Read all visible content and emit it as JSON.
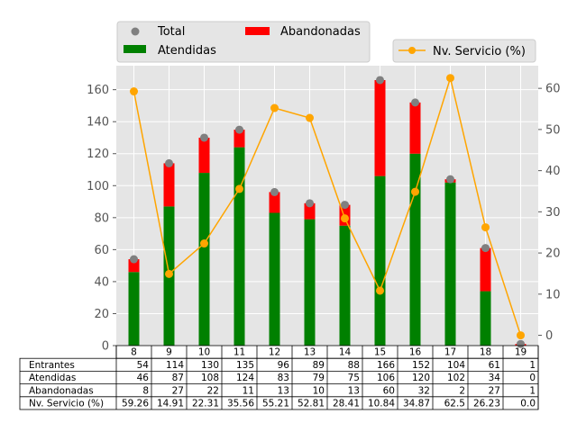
{
  "chart_data": {
    "type": "bar",
    "categories": [
      "8",
      "9",
      "10",
      "11",
      "12",
      "13",
      "14",
      "15",
      "16",
      "17",
      "18",
      "19"
    ],
    "series": [
      {
        "name": "Total",
        "kind": "scatter",
        "color": "#808080",
        "values": [
          54,
          114,
          130,
          135,
          96,
          89,
          88,
          166,
          152,
          104,
          61,
          1
        ]
      },
      {
        "name": "Atendidas",
        "kind": "stacked-bar",
        "color": "#008000",
        "values": [
          46,
          87,
          108,
          124,
          83,
          79,
          75,
          106,
          120,
          102,
          34,
          0
        ]
      },
      {
        "name": "Abandonadas",
        "kind": "stacked-bar",
        "color": "#ff0000",
        "values": [
          8,
          27,
          22,
          11,
          13,
          10,
          13,
          60,
          32,
          2,
          27,
          1
        ]
      },
      {
        "name": "Nv. Servicio (%)",
        "kind": "line",
        "axis": "right",
        "color": "#ffa500",
        "values": [
          59.26,
          14.91,
          22.31,
          35.56,
          55.21,
          52.81,
          28.41,
          10.84,
          34.87,
          62.5,
          26.23,
          0.0
        ]
      }
    ],
    "y_left": {
      "ticks": [
        0,
        20,
        40,
        60,
        80,
        100,
        120,
        140,
        160
      ],
      "ylim": [
        0,
        175
      ]
    },
    "y_right": {
      "ticks": [
        0,
        10,
        20,
        30,
        40,
        50,
        60
      ],
      "ylim": [
        -2.5,
        65.5
      ]
    },
    "grid": true,
    "legend_left": "top-left",
    "legend_right": "top-right",
    "table": {
      "rows": [
        {
          "label": "Entrantes",
          "values": [
            "54",
            "114",
            "130",
            "135",
            "96",
            "89",
            "88",
            "166",
            "152",
            "104",
            "61",
            "1"
          ]
        },
        {
          "label": "Atendidas",
          "values": [
            "46",
            "87",
            "108",
            "124",
            "83",
            "79",
            "75",
            "106",
            "120",
            "102",
            "34",
            "0"
          ]
        },
        {
          "label": "Abandonadas",
          "values": [
            "8",
            "27",
            "22",
            "11",
            "13",
            "10",
            "13",
            "60",
            "32",
            "2",
            "27",
            "1"
          ]
        },
        {
          "label": "Nv. Servicio (%)",
          "values": [
            "59.26",
            "14.91",
            "22.31",
            "35.56",
            "55.21",
            "52.81",
            "28.41",
            "10.84",
            "34.87",
            "62.5",
            "26.23",
            "0.0"
          ]
        }
      ]
    }
  }
}
